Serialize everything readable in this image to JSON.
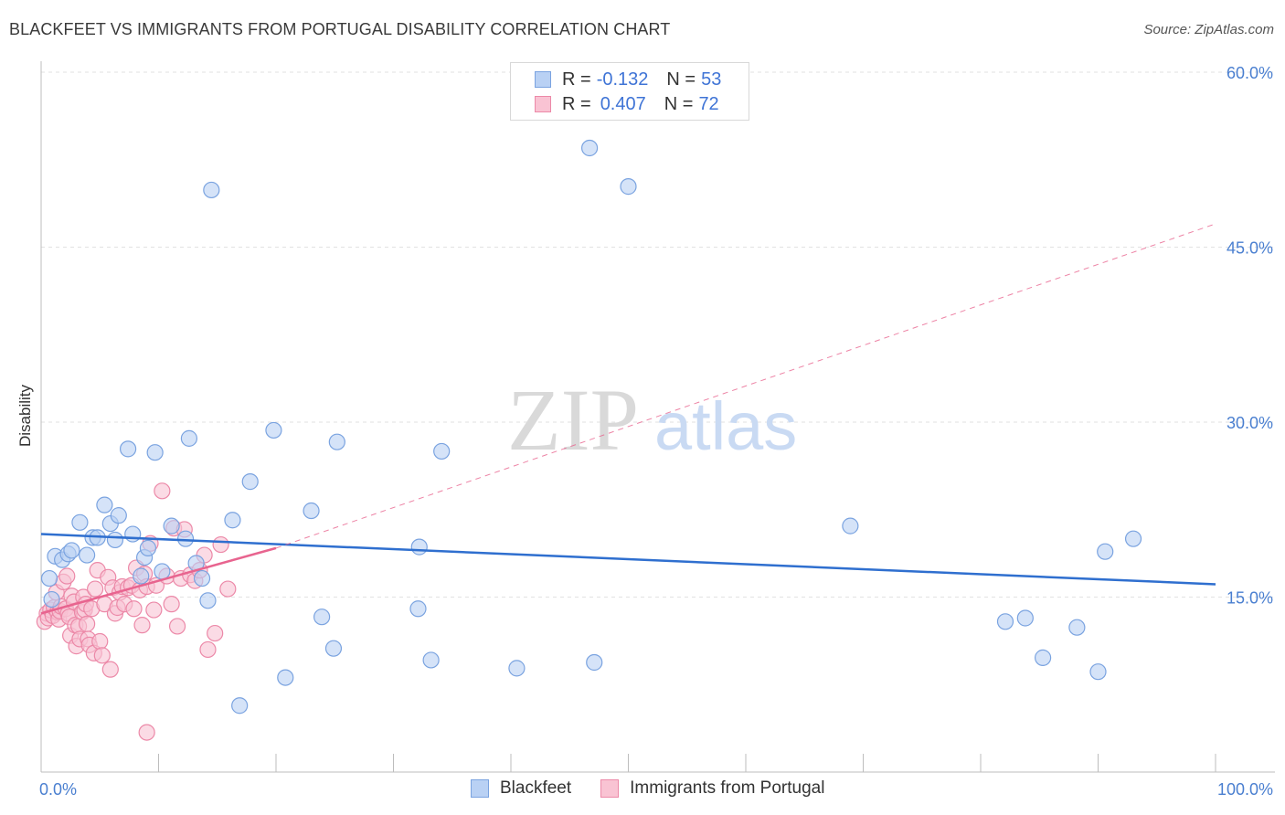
{
  "title": "BLACKFEET VS IMMIGRANTS FROM PORTUGAL DISABILITY CORRELATION CHART",
  "source": "Source: ZipAtlas.com",
  "watermark": {
    "zip": "ZIP",
    "atlas": "atlas"
  },
  "legend": {
    "r_label": "R =",
    "n_label": "N =",
    "series": [
      {
        "name": "Blackfeet",
        "r": "-0.132",
        "n": "53",
        "fill": "#b9d1f4",
        "stroke": "#7aa3e0"
      },
      {
        "name": "Immigrants from Portugal",
        "r": "0.407",
        "n": "72",
        "fill": "#f9c3d3",
        "stroke": "#ec89a8"
      }
    ]
  },
  "chart_data": {
    "type": "scatter",
    "title": "BLACKFEET VS IMMIGRANTS FROM PORTUGAL DISABILITY CORRELATION CHART",
    "xlabel": "",
    "ylabel": "Disability",
    "xlim": [
      0,
      100
    ],
    "ylim": [
      0,
      60
    ],
    "x_tick_labels": [
      "0.0%",
      "100.0%"
    ],
    "y_ticks": [
      15,
      30,
      45,
      60
    ],
    "y_tick_labels": [
      "15.0%",
      "30.0%",
      "45.0%",
      "60.0%"
    ],
    "colors": {
      "blue": "#2f6fcf",
      "pink": "#e8648f"
    },
    "series": [
      {
        "name": "Blackfeet",
        "color": "#7aa3e0",
        "fill": "#b9d1f4",
        "trendline": {
          "x": [
            0,
            100
          ],
          "y": [
            20.4,
            16.1
          ],
          "style": "solid"
        },
        "points": [
          [
            0.7,
            16.6
          ],
          [
            1.2,
            18.5
          ],
          [
            1.8,
            18.2
          ],
          [
            2.3,
            18.7
          ],
          [
            3.3,
            21.4
          ],
          [
            3.9,
            18.6
          ],
          [
            4.4,
            20.1
          ],
          [
            4.8,
            20.1
          ],
          [
            5.4,
            22.9
          ],
          [
            5.9,
            21.3
          ],
          [
            6.3,
            19.9
          ],
          [
            6.6,
            22.0
          ],
          [
            7.4,
            27.7
          ],
          [
            7.8,
            20.4
          ],
          [
            8.5,
            16.8
          ],
          [
            8.8,
            18.4
          ],
          [
            9.1,
            19.2
          ],
          [
            9.7,
            27.4
          ],
          [
            10.3,
            17.2
          ],
          [
            11.1,
            21.1
          ],
          [
            12.3,
            20.0
          ],
          [
            12.6,
            28.6
          ],
          [
            13.2,
            17.9
          ],
          [
            13.7,
            16.6
          ],
          [
            14.2,
            14.7
          ],
          [
            14.5,
            49.9
          ],
          [
            16.3,
            21.6
          ],
          [
            16.9,
            5.7
          ],
          [
            17.8,
            24.9
          ],
          [
            19.8,
            29.3
          ],
          [
            20.8,
            8.1
          ],
          [
            23.0,
            22.4
          ],
          [
            23.9,
            13.3
          ],
          [
            24.9,
            10.6
          ],
          [
            25.2,
            28.3
          ],
          [
            32.2,
            19.3
          ],
          [
            32.1,
            14.0
          ],
          [
            33.2,
            9.6
          ],
          [
            34.1,
            27.5
          ],
          [
            40.5,
            8.9
          ],
          [
            46.7,
            53.5
          ],
          [
            47.1,
            9.4
          ],
          [
            50.0,
            50.2
          ],
          [
            68.9,
            21.1
          ],
          [
            82.1,
            12.9
          ],
          [
            83.8,
            13.2
          ],
          [
            85.3,
            9.8
          ],
          [
            88.2,
            12.4
          ],
          [
            90.0,
            8.6
          ],
          [
            90.6,
            18.9
          ],
          [
            93.0,
            20.0
          ],
          [
            0.9,
            14.8
          ],
          [
            2.6,
            19.0
          ]
        ]
      },
      {
        "name": "Immigrants from Portugal",
        "color": "#ec89a8",
        "fill": "#f9c3d3",
        "trendline": {
          "x": [
            0,
            20
          ],
          "y": [
            13.6,
            19.2
          ],
          "style": "solid",
          "extended_x": [
            20,
            100
          ],
          "extended_y": [
            19.2,
            47.0
          ],
          "extended_style": "dashed"
        },
        "points": [
          [
            0.3,
            12.9
          ],
          [
            0.5,
            13.6
          ],
          [
            0.6,
            13.2
          ],
          [
            0.8,
            13.9
          ],
          [
            1.0,
            13.4
          ],
          [
            1.1,
            14.1
          ],
          [
            1.3,
            15.4
          ],
          [
            1.4,
            13.7
          ],
          [
            1.5,
            13.1
          ],
          [
            1.6,
            13.8
          ],
          [
            1.7,
            14.2
          ],
          [
            1.9,
            16.3
          ],
          [
            2.1,
            14.0
          ],
          [
            2.2,
            16.8
          ],
          [
            2.3,
            13.6
          ],
          [
            2.4,
            13.3
          ],
          [
            2.5,
            11.7
          ],
          [
            2.6,
            15.1
          ],
          [
            2.8,
            14.6
          ],
          [
            2.9,
            12.6
          ],
          [
            3.0,
            10.8
          ],
          [
            3.2,
            12.5
          ],
          [
            3.3,
            11.4
          ],
          [
            3.5,
            13.7
          ],
          [
            3.6,
            15.0
          ],
          [
            3.7,
            13.9
          ],
          [
            3.8,
            14.4
          ],
          [
            3.9,
            12.7
          ],
          [
            4.0,
            11.4
          ],
          [
            4.1,
            10.9
          ],
          [
            4.3,
            14.0
          ],
          [
            4.5,
            10.2
          ],
          [
            4.6,
            15.7
          ],
          [
            4.8,
            17.3
          ],
          [
            5.0,
            11.2
          ],
          [
            5.2,
            10.0
          ],
          [
            5.4,
            14.4
          ],
          [
            5.7,
            16.7
          ],
          [
            5.9,
            8.8
          ],
          [
            6.1,
            15.8
          ],
          [
            6.3,
            13.6
          ],
          [
            6.5,
            14.1
          ],
          [
            6.7,
            15.4
          ],
          [
            6.9,
            15.9
          ],
          [
            7.1,
            14.4
          ],
          [
            7.4,
            15.8
          ],
          [
            7.7,
            16.0
          ],
          [
            7.9,
            14.0
          ],
          [
            8.1,
            17.5
          ],
          [
            8.4,
            15.6
          ],
          [
            8.6,
            12.6
          ],
          [
            8.8,
            17.0
          ],
          [
            9.0,
            15.9
          ],
          [
            9.3,
            19.6
          ],
          [
            9.6,
            13.9
          ],
          [
            9.8,
            16.0
          ],
          [
            10.3,
            24.1
          ],
          [
            10.7,
            16.8
          ],
          [
            11.1,
            14.4
          ],
          [
            11.3,
            20.9
          ],
          [
            11.6,
            12.5
          ],
          [
            11.9,
            16.6
          ],
          [
            12.2,
            20.8
          ],
          [
            12.7,
            16.9
          ],
          [
            13.1,
            16.4
          ],
          [
            13.5,
            17.3
          ],
          [
            13.9,
            18.6
          ],
          [
            14.2,
            10.5
          ],
          [
            14.8,
            11.9
          ],
          [
            15.3,
            19.5
          ],
          [
            15.9,
            15.7
          ],
          [
            9.0,
            3.4
          ]
        ]
      }
    ]
  }
}
